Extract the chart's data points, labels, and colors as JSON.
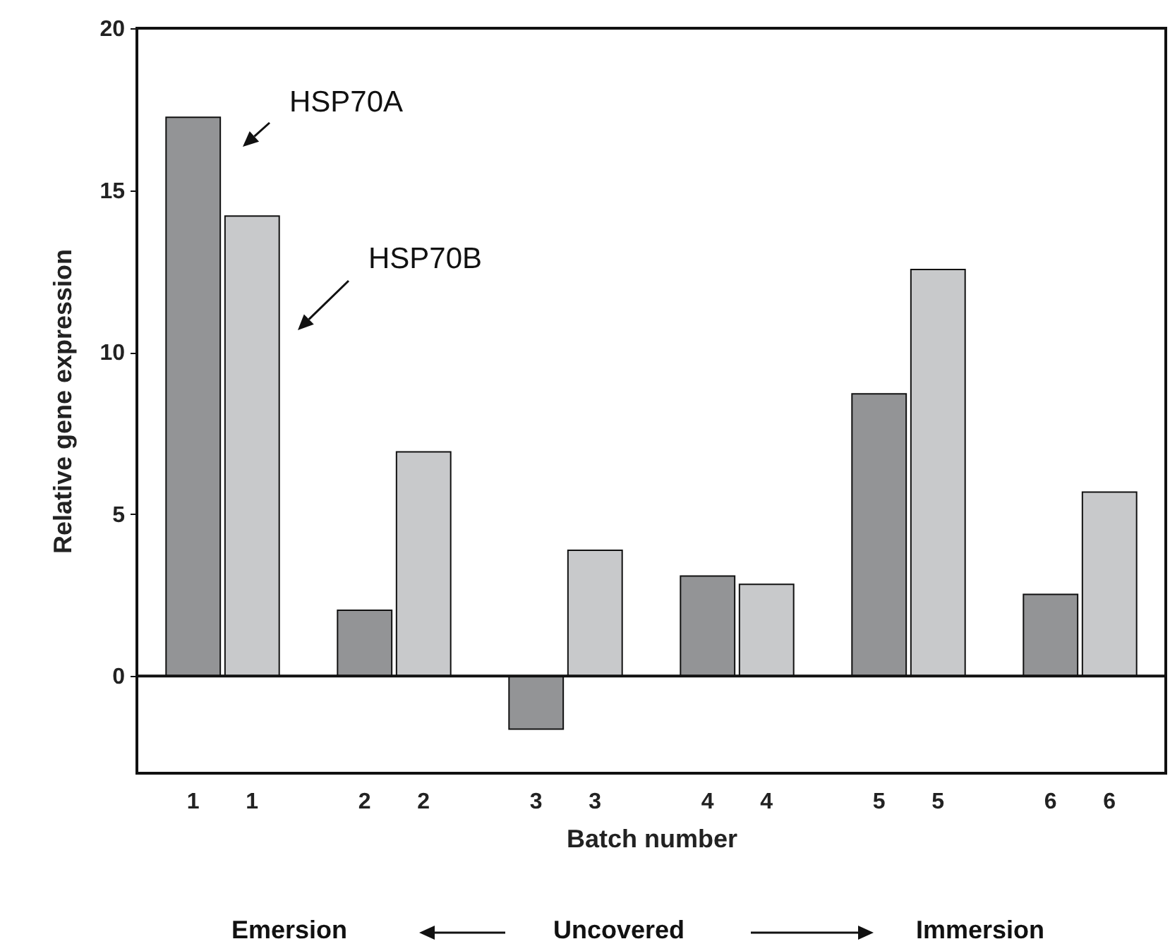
{
  "chart_data": {
    "type": "bar",
    "xlabel": "Batch number",
    "ylabel": "Relative gene expression",
    "categories": [
      "1",
      "1",
      "2",
      "2",
      "3",
      "3",
      "4",
      "4",
      "5",
      "5",
      "6",
      "6"
    ],
    "values": [
      17.25,
      14.2,
      2.03,
      6.92,
      -1.64,
      3.88,
      3.09,
      2.83,
      8.71,
      12.55,
      2.52,
      5.68
    ],
    "colors": [
      "#939496",
      "#c8c9cb",
      "#939496",
      "#c8c9cb",
      "#939496",
      "#c8c9cb",
      "#939496",
      "#c8c9cb",
      "#939496",
      "#c8c9cb",
      "#939496",
      "#c8c9cb"
    ],
    "ylim": [
      -3,
      20
    ],
    "yticks": [
      0,
      5,
      10,
      15,
      20
    ],
    "ref_lines": [
      {
        "axis": "y",
        "value": 0
      }
    ],
    "annotations": [
      "HSP70A",
      "HSP70B",
      "Emersion",
      "Uncovered",
      "Immersion"
    ]
  }
}
